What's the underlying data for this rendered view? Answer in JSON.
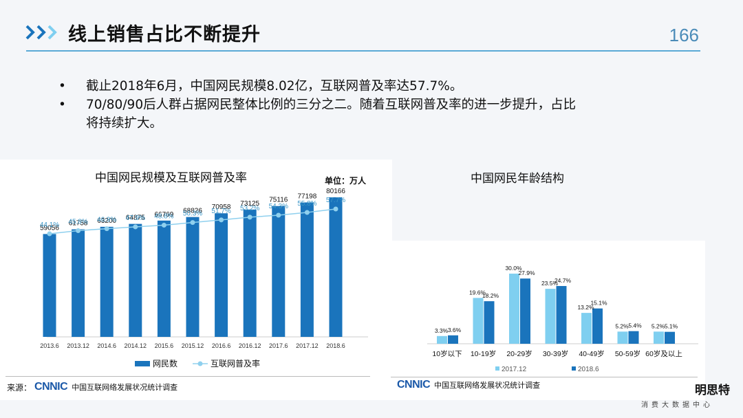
{
  "header": {
    "title": "线上销售占比不断提升",
    "page_number": "166"
  },
  "bullets": [
    "截止2018年6月，中国网民规模8.02亿，互联网普及率达57.7%。",
    "70/80/90后人群占据网民整体比例的三分之二。随着互联网普及率的进一步提升，占比将持续扩大。"
  ],
  "bullet_marker": "•",
  "colors": {
    "bar_dark": "#1a74bc",
    "bar_light": "#7fcff0",
    "line": "#8fd0ee",
    "accent": "#5aa9d6"
  },
  "left_chart": {
    "unit": "单位：万人",
    "source_label": "来源：",
    "source_logo": "CNNIC",
    "source_org": "中国互联网络发展状况统计调查"
  },
  "right_chart": {
    "source_logo": "CNNIC",
    "source_org": "中国互联网络发展状况统计调查"
  },
  "footer": {
    "brand": "明思特",
    "tagline": "消费大数据中心"
  },
  "chart_data": [
    {
      "type": "bar",
      "title": "中国网民规模及互联网普及率",
      "categories": [
        "2013.6",
        "2013.12",
        "2014.6",
        "2014.12",
        "2015.6",
        "2015.12",
        "2016.6",
        "2016.12",
        "2017.6",
        "2017.12",
        "2018.6"
      ],
      "series": [
        {
          "name": "网民数",
          "type": "bar",
          "values": [
            59056,
            61758,
            63200,
            64875,
            66769,
            68826,
            70958,
            73125,
            75116,
            77198,
            80166
          ]
        },
        {
          "name": "互联网普及率",
          "type": "line",
          "values": [
            44.1,
            45.8,
            46.9,
            47.9,
            48.8,
            50.3,
            51.7,
            53.2,
            54.3,
            55.8,
            57.7
          ],
          "labels": [
            "44.1%",
            "45.8%",
            "46.9%",
            "47.9%",
            "48.8%",
            "50.3%",
            "51.7%",
            "53.2%",
            "54.3%",
            "55.8%",
            "57.7%"
          ]
        }
      ],
      "ylim": [
        0,
        90000
      ],
      "legend_position": "bottom"
    },
    {
      "type": "bar",
      "title": "中国网民年龄结构",
      "categories": [
        "10岁以下",
        "10-19岁",
        "20-29岁",
        "30-39岁",
        "40-49岁",
        "50-59岁",
        "60岁及以上"
      ],
      "series": [
        {
          "name": "2017.12",
          "values": [
            3.3,
            19.6,
            30.0,
            23.5,
            13.2,
            5.2,
            5.2
          ],
          "labels": [
            "3.3%",
            "19.6%",
            "30.0%",
            "23.5%",
            "13.2%",
            "5.2%",
            "5.2%"
          ]
        },
        {
          "name": "2018.6",
          "values": [
            3.6,
            18.2,
            27.9,
            24.7,
            15.1,
            5.4,
            5.1
          ],
          "labels": [
            "3.6%",
            "18.2%",
            "27.9%",
            "24.7%",
            "15.1%",
            "5.4%",
            "5.1%"
          ]
        }
      ],
      "ylim": [
        0,
        32
      ],
      "legend_position": "bottom"
    }
  ]
}
